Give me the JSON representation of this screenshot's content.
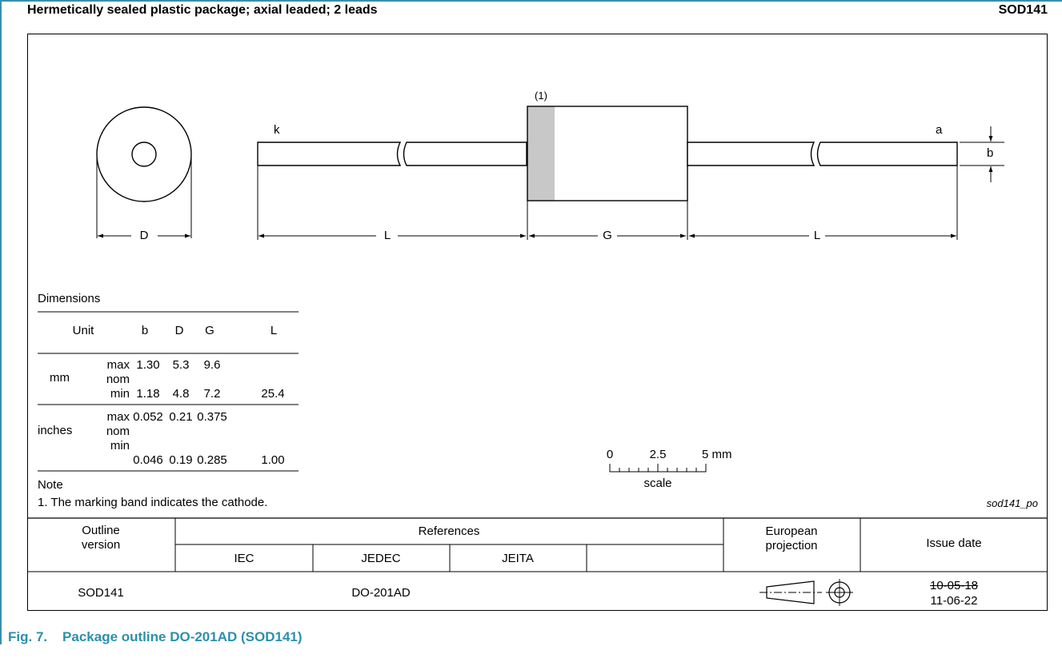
{
  "header": {
    "title": "Hermetically sealed plastic package; axial leaded; 2 leads",
    "code": "SOD141"
  },
  "drawing": {
    "label_k": "k",
    "label_a": "a",
    "label_b": "b",
    "note_ref": "(1)",
    "dim_D": "D",
    "dim_L_left": "L",
    "dim_G": "G",
    "dim_L_right": "L",
    "band_color": "#c8c8c8"
  },
  "dimensions": {
    "title": "Dimensions",
    "columns": [
      "Unit",
      "b",
      "D",
      "G",
      "L"
    ],
    "mm": {
      "unit": "mm",
      "max": {
        "label": "max",
        "b": "1.30",
        "D": "5.3",
        "G": "9.6",
        "L": ""
      },
      "nom": {
        "label": "nom"
      },
      "min": {
        "label": "min",
        "b": "1.18",
        "D": "4.8",
        "G": "7.2",
        "L": "25.4"
      }
    },
    "inches": {
      "unit": "inches",
      "max": {
        "label": "max",
        "b": "0.052",
        "D": "0.21",
        "G": "0.375",
        "L": ""
      },
      "nom": {
        "label": "nom"
      },
      "min": {
        "label": "min",
        "b": "0.046",
        "D": "0.19",
        "G": "0.285",
        "L": "1.00"
      }
    }
  },
  "scale": {
    "zero": "0",
    "mid": "2.5",
    "end": "5 mm",
    "label": "scale"
  },
  "note": {
    "title": "Note",
    "text": "1. The marking band indicates the cathode.",
    "drawing_id": "sod141_po"
  },
  "table": {
    "outline_version_label": "Outline\nversion",
    "outline_line1": "Outline",
    "outline_line2": "version",
    "references_label": "References",
    "ref_cols": [
      "IEC",
      "JEDEC",
      "JEITA",
      ""
    ],
    "european_line1": "European",
    "european_line2": "projection",
    "issue_date_label": "Issue date",
    "row": {
      "outline": "SOD141",
      "iec": "",
      "jedec": "DO-201AD",
      "jeita": "",
      "issue_old": "10-05-18",
      "issue_new": "11-06-22"
    }
  },
  "caption": {
    "fig": "Fig. 7.",
    "title": "Package outline DO-201AD (SOD141)"
  }
}
